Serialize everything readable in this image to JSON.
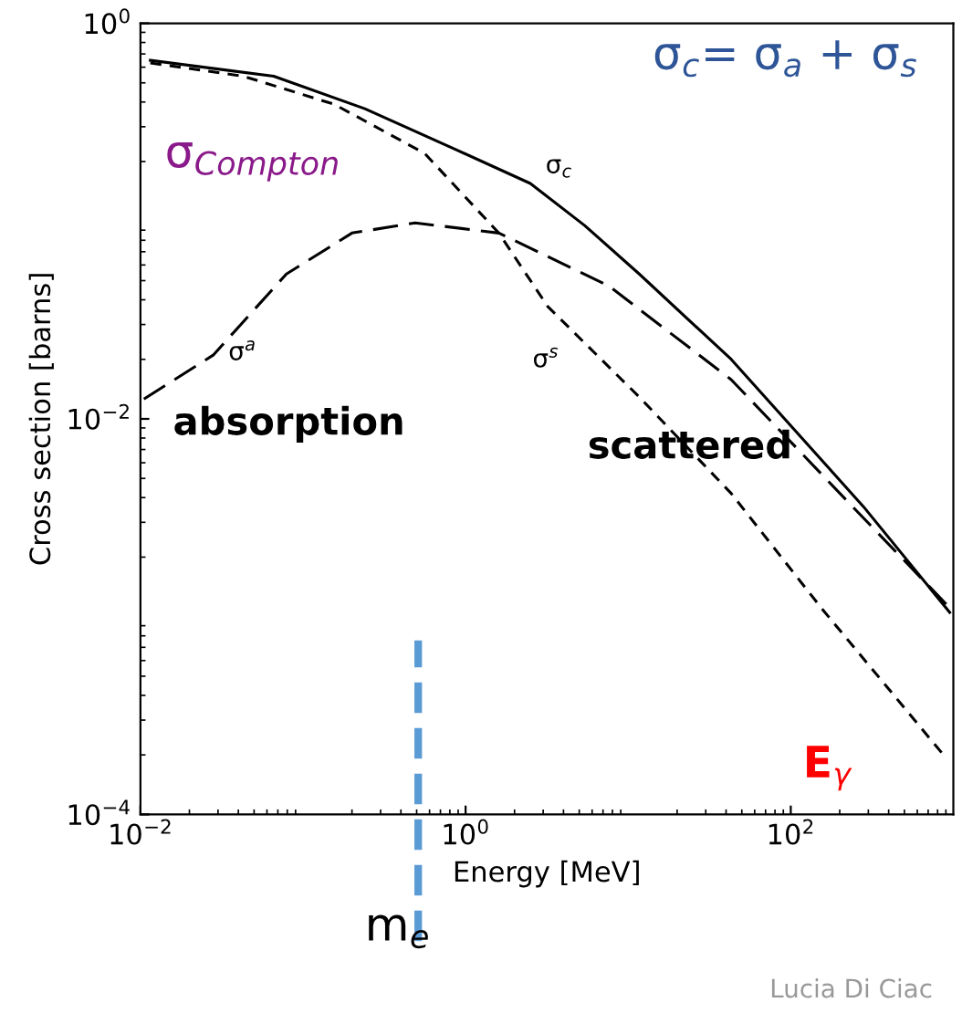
{
  "chart_data": {
    "type": "line",
    "xlabel": "Energy [MeV]",
    "ylabel": "Cross section [barns]",
    "log": "xy",
    "xlim": [
      0.01,
      1000
    ],
    "ylim": [
      0.0001,
      1
    ],
    "xticks": [
      {
        "value": 0.01,
        "label": "10$^{−2}$"
      },
      {
        "value": 1,
        "label": "10$^{0}$"
      },
      {
        "value": 100,
        "label": "10$^{2}$"
      }
    ],
    "yticks": [
      {
        "value": 0.0001,
        "label": "10$^{−4}$"
      },
      {
        "value": 0.01,
        "label": "10$^{−2}$"
      },
      {
        "value": 1,
        "label": "10$^{0}$"
      }
    ],
    "grid": false,
    "legend": false,
    "marker": "none",
    "series": [
      {
        "name": "σ$_{c}$",
        "color": "#000000",
        "line_style": "solid",
        "x": [
          0.0115,
          0.066,
          0.24,
          0.87,
          2.5,
          5.4,
          11.7,
          43,
          280,
          950
        ],
        "values": [
          0.65,
          0.54,
          0.37,
          0.23,
          0.155,
          0.095,
          0.054,
          0.02,
          0.0036,
          0.00105
        ]
      },
      {
        "name": "σ$^{a}$",
        "color": "#000000",
        "line_style": "dashed",
        "x": [
          0.0105,
          0.028,
          0.079,
          0.2,
          0.49,
          1.6,
          7.6,
          43,
          240,
          910
        ],
        "values": [
          0.0126,
          0.021,
          0.054,
          0.087,
          0.098,
          0.087,
          0.047,
          0.0158,
          0.0036,
          0.00115
        ]
      },
      {
        "name": "σ$^{s}$",
        "color": "#000000",
        "line_style": "dotted",
        "x": [
          0.0115,
          0.043,
          0.155,
          0.56,
          1.6,
          3.2,
          11.7,
          43,
          155,
          870
        ],
        "values": [
          0.63,
          0.54,
          0.39,
          0.22,
          0.087,
          0.037,
          0.0129,
          0.0042,
          0.0011,
          0.0002
        ]
      }
    ],
    "ref_lines": [
      {
        "axis": "x",
        "value": 0.511,
        "label": "m$_{e}$",
        "color": "#5b9bd5",
        "line_style": "dashed"
      }
    ],
    "annotations": [
      "σ$_{c}$= σ$_{a}$ + σ$_{s}$",
      "σ$_{Compton}$",
      "absorption",
      "scattered",
      "E$_{γ}$",
      "Lucia Di Ciac"
    ]
  }
}
